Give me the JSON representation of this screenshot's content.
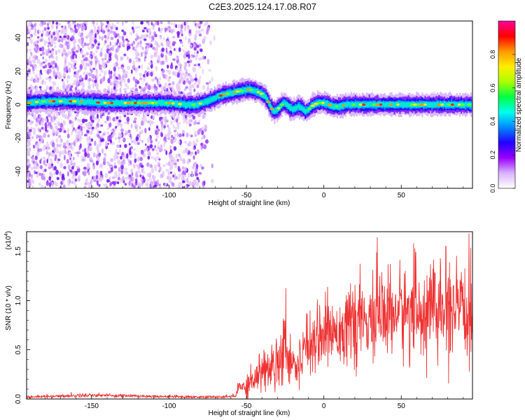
{
  "title": "C2E3.2025.124.17.08.R07",
  "chart_data": [
    {
      "type": "heatmap",
      "name": "spectrogram",
      "xlabel": "Height of straight line (km)",
      "ylabel": "Frequency (Hz)",
      "xlim": [
        -192,
        96
      ],
      "ylim": [
        -50,
        50
      ],
      "xticks": [
        -150,
        -100,
        -50,
        0,
        50
      ],
      "yticks": [
        -40,
        -20,
        0,
        20,
        40
      ],
      "colorbar": {
        "label": "Normalized spectral amplitude",
        "range": [
          0,
          1
        ],
        "ticks": [
          "0.0",
          "0.2",
          "0.4",
          "0.6",
          "0.8"
        ],
        "colormap": [
          "#ffffff",
          "#d9b3ff",
          "#9900ff",
          "#2200ff",
          "#0088ff",
          "#00ffee",
          "#00ff44",
          "#aaff00",
          "#ffee00",
          "#ff9900",
          "#ff0000",
          "#ff0099"
        ]
      },
      "ridge": {
        "x": [
          -192,
          -180,
          -160,
          -140,
          -120,
          -100,
          -90,
          -82,
          -75,
          -70,
          -65,
          -60,
          -55,
          -50,
          -47,
          -44,
          -41,
          -38,
          -36,
          -34,
          -32,
          -30,
          -28,
          -26,
          -24,
          -22,
          -20,
          -18,
          -16,
          -14,
          -12,
          -10,
          -8,
          -6,
          -4,
          -2,
          0,
          3,
          6,
          10,
          15,
          20,
          30,
          40,
          50,
          60,
          70,
          80,
          90,
          96
        ],
        "freq": [
          1,
          2,
          2,
          1,
          1,
          1,
          0,
          0,
          2,
          4,
          6,
          7,
          8,
          9,
          9,
          8,
          7,
          5,
          2,
          -2,
          -4,
          -3,
          -1,
          1,
          0,
          -2,
          -3,
          -2,
          -1,
          -2,
          -4,
          -3,
          -1,
          0,
          1,
          1,
          1,
          0,
          -1,
          -1,
          0,
          0,
          0,
          0,
          0,
          0,
          0,
          0,
          0,
          0
        ]
      },
      "scatter_region_x": [
        -192,
        -70
      ]
    },
    {
      "type": "line",
      "name": "snr",
      "xlabel": "Height of straight line (km)",
      "ylabel": "SNR (10 * v/v)",
      "yscale_label": "(x10",
      "yscale_exp": "4",
      "xlim": [
        -192,
        96
      ],
      "ylim": [
        0,
        1.7
      ],
      "xticks": [
        -150,
        -100,
        -50,
        0,
        50
      ],
      "yticks": [
        "0.0",
        "0.5",
        "1.0",
        "1.5"
      ],
      "color": "#ee3333",
      "envelope": {
        "x": [
          -192,
          -170,
          -150,
          -120,
          -100,
          -80,
          -65,
          -57,
          -55,
          -50,
          -45,
          -40,
          -35,
          -30,
          -27,
          -24,
          -22,
          -20,
          -18,
          -16,
          -14,
          -12,
          -10,
          -5,
          0,
          5,
          10,
          20,
          30,
          40,
          50,
          60,
          70,
          80,
          90,
          96
        ],
        "mean": [
          0.02,
          0.03,
          0.04,
          0.03,
          0.025,
          0.02,
          0.02,
          0.03,
          0.12,
          0.14,
          0.22,
          0.28,
          0.32,
          0.4,
          0.52,
          0.58,
          0.38,
          0.44,
          0.32,
          0.3,
          0.48,
          0.62,
          0.58,
          0.64,
          0.68,
          0.68,
          0.72,
          0.75,
          0.8,
          0.85,
          0.9,
          0.88,
          0.9,
          0.88,
          0.86,
          0.88
        ],
        "noise": [
          0.01,
          0.012,
          0.015,
          0.012,
          0.01,
          0.01,
          0.01,
          0.015,
          0.07,
          0.09,
          0.12,
          0.15,
          0.18,
          0.22,
          0.26,
          0.28,
          0.2,
          0.22,
          0.17,
          0.17,
          0.2,
          0.22,
          0.22,
          0.22,
          0.24,
          0.24,
          0.26,
          0.28,
          0.3,
          0.32,
          0.33,
          0.34,
          0.34,
          0.34,
          0.33,
          0.34
        ]
      }
    }
  ]
}
